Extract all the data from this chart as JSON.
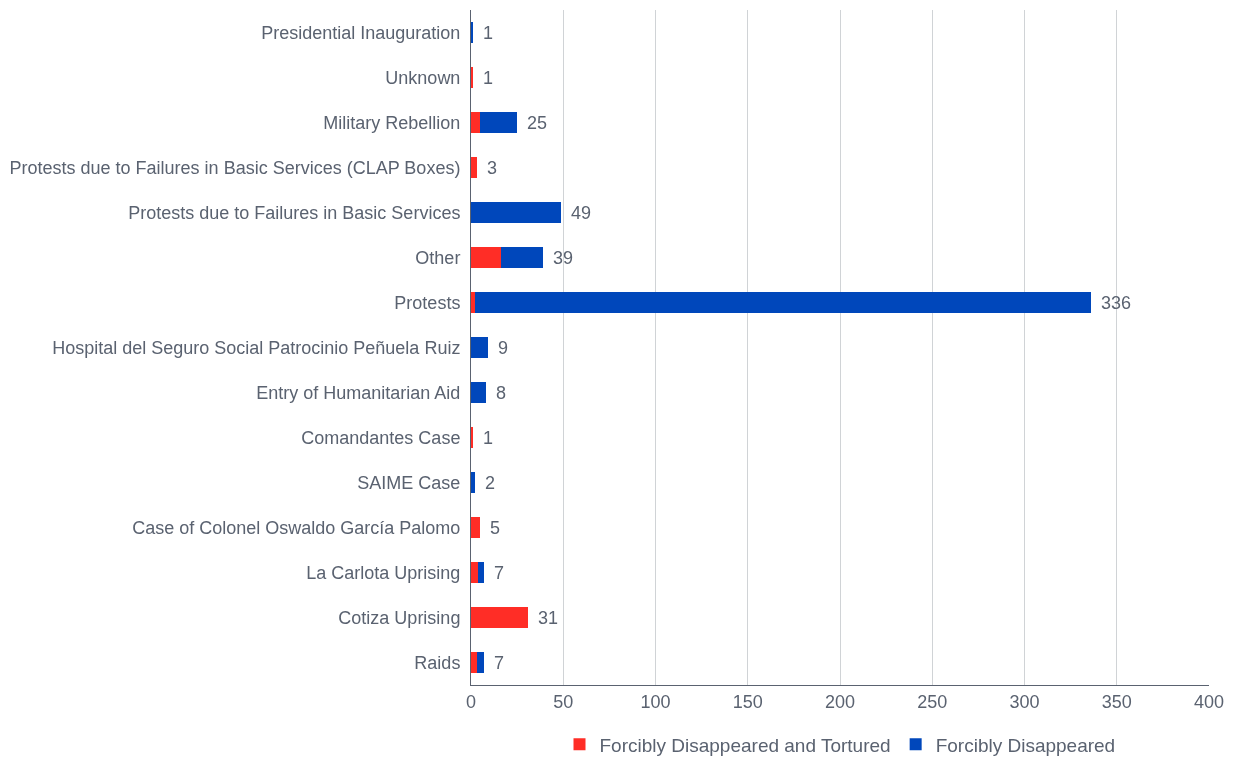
{
  "chart_data": {
    "type": "bar",
    "orientation": "horizontal",
    "stacked": true,
    "categories": [
      "Presidential Inauguration",
      "Unknown",
      "Military Rebellion",
      "Protests due to Failures in Basic Services (CLAP Boxes)",
      "Protests due to Failures in Basic Services",
      "Other",
      "Protests",
      "Hospital del Seguro Social Patrocinio Peñuela Ruiz",
      "Entry of Humanitarian Aid",
      "Comandantes Case",
      "SAIME Case",
      "Case of Colonel Oswaldo García Palomo",
      "La Carlota Uprising",
      "Cotiza Uprising",
      "Raids"
    ],
    "series": [
      {
        "name": "Forcibly Disappeared and Tortured",
        "color": "#ff2d26",
        "values": [
          0,
          1,
          5,
          3,
          0,
          16,
          2,
          0,
          0,
          1,
          0,
          5,
          4,
          31,
          3
        ]
      },
      {
        "name": "Forcibly Disappeared",
        "color": "#0047bb",
        "values": [
          1,
          0,
          20,
          0,
          49,
          23,
          334,
          9,
          8,
          0,
          2,
          0,
          3,
          0,
          4
        ]
      }
    ],
    "totals": [
      "1",
      "1",
      "25",
      "3",
      "49",
      "39",
      "336",
      "9",
      "8",
      "1",
      "2",
      "5",
      "7",
      "31",
      "7"
    ],
    "xlim": [
      0,
      400
    ],
    "xticks": [
      0,
      50,
      100,
      150,
      200,
      250,
      300,
      350,
      400
    ],
    "grid": "x",
    "legend": "bottom"
  }
}
